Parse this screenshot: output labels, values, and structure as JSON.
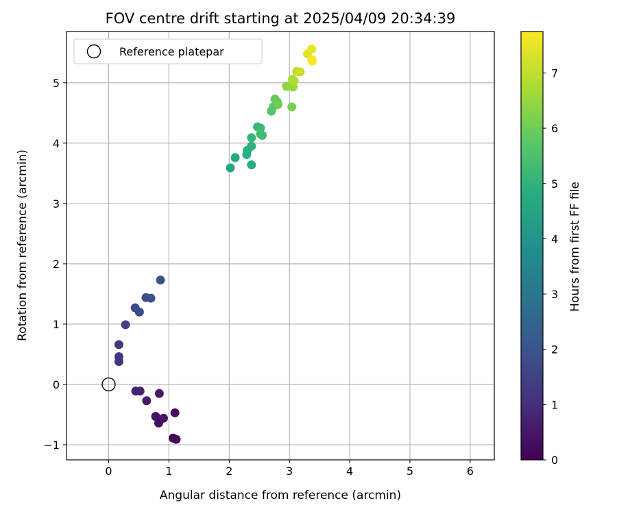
{
  "chart_data": {
    "type": "scatter",
    "title": "FOV centre drift starting at 2025/04/09 20:34:39",
    "xlabel": "Angular distance from reference (arcmin)",
    "ylabel": "Rotation from reference (arcmin)",
    "xlim": [
      -0.7,
      6.4
    ],
    "ylim": [
      -1.25,
      5.85
    ],
    "x_ticks": [
      0,
      1,
      2,
      3,
      4,
      5,
      6
    ],
    "y_ticks": [
      -1,
      0,
      1,
      2,
      3,
      4,
      5
    ],
    "grid": true,
    "legend": {
      "position": "top-left",
      "entries": [
        "Reference platepar"
      ]
    },
    "reference_point": {
      "x": 0,
      "y": 0,
      "label": "Reference platepar"
    },
    "colorbar": {
      "label": "Hours from first FF file",
      "colormap": "viridis",
      "range": [
        0,
        7.75
      ],
      "ticks": [
        0,
        1,
        2,
        3,
        4,
        5,
        6,
        7
      ]
    },
    "points": [
      {
        "x": 1.07,
        "y": -0.89,
        "h": 0.05
      },
      {
        "x": 1.12,
        "y": -0.91,
        "h": 0.12
      },
      {
        "x": 1.1,
        "y": -0.47,
        "h": 0.2
      },
      {
        "x": 0.83,
        "y": -0.64,
        "h": 0.28
      },
      {
        "x": 0.78,
        "y": -0.53,
        "h": 0.35
      },
      {
        "x": 0.91,
        "y": -0.56,
        "h": 0.42
      },
      {
        "x": 0.84,
        "y": -0.15,
        "h": 0.5
      },
      {
        "x": 0.63,
        "y": -0.27,
        "h": 0.58
      },
      {
        "x": 0.45,
        "y": -0.11,
        "h": 0.65
      },
      {
        "x": 0.52,
        "y": -0.11,
        "h": 0.72
      },
      {
        "x": 0.17,
        "y": 0.38,
        "h": 1.1
      },
      {
        "x": 0.17,
        "y": 0.46,
        "h": 1.18
      },
      {
        "x": 0.17,
        "y": 0.66,
        "h": 1.26
      },
      {
        "x": 0.28,
        "y": 0.99,
        "h": 1.5
      },
      {
        "x": 0.44,
        "y": 1.27,
        "h": 1.65
      },
      {
        "x": 0.51,
        "y": 1.2,
        "h": 1.72
      },
      {
        "x": 0.62,
        "y": 1.44,
        "h": 1.85
      },
      {
        "x": 0.7,
        "y": 1.43,
        "h": 1.92
      },
      {
        "x": 0.86,
        "y": 1.73,
        "h": 2.0
      },
      {
        "x": 2.02,
        "y": 3.59,
        "h": 4.58
      },
      {
        "x": 2.1,
        "y": 3.76,
        "h": 4.7
      },
      {
        "x": 2.37,
        "y": 3.64,
        "h": 4.78
      },
      {
        "x": 2.29,
        "y": 3.81,
        "h": 4.85
      },
      {
        "x": 2.3,
        "y": 3.88,
        "h": 4.9
      },
      {
        "x": 2.37,
        "y": 3.95,
        "h": 4.98
      },
      {
        "x": 2.37,
        "y": 4.09,
        "h": 5.05
      },
      {
        "x": 2.47,
        "y": 4.27,
        "h": 5.12
      },
      {
        "x": 2.52,
        "y": 4.25,
        "h": 5.18
      },
      {
        "x": 2.55,
        "y": 4.13,
        "h": 5.25
      },
      {
        "x": 2.52,
        "y": 4.15,
        "h": 5.3
      },
      {
        "x": 2.7,
        "y": 4.53,
        "h": 5.62
      },
      {
        "x": 2.73,
        "y": 4.6,
        "h": 5.7
      },
      {
        "x": 2.76,
        "y": 4.73,
        "h": 5.85
      },
      {
        "x": 2.8,
        "y": 4.68,
        "h": 5.95
      },
      {
        "x": 2.81,
        "y": 4.64,
        "h": 6.02
      },
      {
        "x": 3.04,
        "y": 4.6,
        "h": 6.1
      },
      {
        "x": 2.95,
        "y": 4.94,
        "h": 6.4
      },
      {
        "x": 3.04,
        "y": 4.98,
        "h": 6.5
      },
      {
        "x": 3.06,
        "y": 4.93,
        "h": 6.55
      },
      {
        "x": 3.05,
        "y": 5.06,
        "h": 6.72
      },
      {
        "x": 3.08,
        "y": 5.03,
        "h": 6.8
      },
      {
        "x": 3.12,
        "y": 5.19,
        "h": 7.0
      },
      {
        "x": 3.18,
        "y": 5.18,
        "h": 7.1
      },
      {
        "x": 3.3,
        "y": 5.48,
        "h": 7.35
      },
      {
        "x": 3.37,
        "y": 5.56,
        "h": 7.5
      },
      {
        "x": 3.37,
        "y": 5.38,
        "h": 7.62
      },
      {
        "x": 3.38,
        "y": 5.36,
        "h": 7.7
      }
    ]
  }
}
